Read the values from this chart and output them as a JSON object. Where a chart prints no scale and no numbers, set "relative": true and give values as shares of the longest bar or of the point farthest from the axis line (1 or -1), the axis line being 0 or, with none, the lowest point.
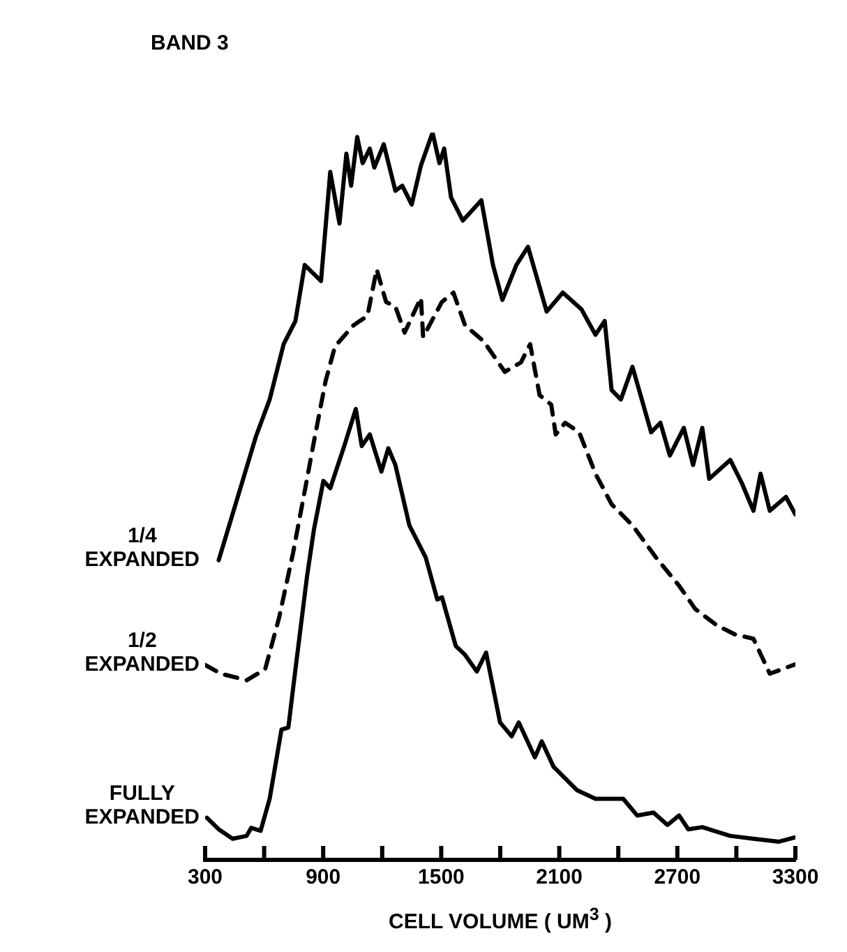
{
  "chart_data": {
    "type": "line",
    "title": "BAND 3",
    "xlabel": "CELL VOLUME ( UM$^{3}$ )",
    "relative": true,
    "legend": false,
    "marker": "none",
    "grid": false,
    "xlim": [
      300,
      3300
    ],
    "xticks": [
      300,
      {
        "value": 600,
        "label": null
      },
      900,
      {
        "value": 1200,
        "label": null
      },
      1500,
      {
        "value": 1800,
        "label": null
      },
      2100,
      {
        "value": 2400,
        "label": null
      },
      2700,
      {
        "value": 3000,
        "label": null
      },
      3300
    ],
    "series": [
      {
        "name": "1/4 EXPANDED",
        "color": "#000000",
        "line_style": "solid",
        "x": [
          369,
          487,
          558,
          628,
          699,
          759,
          806,
          889,
          936,
          983,
          1018,
          1042,
          1073,
          1101,
          1137,
          1160,
          1208,
          1267,
          1302,
          1350,
          1397,
          1456,
          1491,
          1515,
          1550,
          1610,
          1704,
          1763,
          1811,
          1882,
          1941,
          2036,
          2118,
          2213,
          2284,
          2331,
          2366,
          2413,
          2472,
          2567,
          2614,
          2662,
          2733,
          2780,
          2827,
          2862,
          2969,
          3028,
          3087,
          3123,
          3170,
          3252,
          3300
        ],
        "values": [
          0.412,
          0.518,
          0.582,
          0.633,
          0.709,
          0.741,
          0.818,
          0.796,
          0.946,
          0.875,
          0.971,
          0.927,
          0.994,
          0.958,
          0.978,
          0.952,
          0.984,
          0.92,
          0.927,
          0.901,
          0.955,
          1,
          0.958,
          0.978,
          0.911,
          0.879,
          0.907,
          0.818,
          0.77,
          0.818,
          0.843,
          0.754,
          0.78,
          0.757,
          0.722,
          0.741,
          0.646,
          0.633,
          0.678,
          0.588,
          0.601,
          0.556,
          0.594,
          0.543,
          0.594,
          0.524,
          0.55,
          0.518,
          0.48,
          0.531,
          0.48,
          0.499,
          0.475
        ]
      },
      {
        "name": "1/2 EXPANDED",
        "color": "#000000",
        "line_style": "dashed",
        "x": [
          300,
          380,
          511,
          605,
          676,
          747,
          818,
          853,
          912,
          960,
          1054,
          1125,
          1172,
          1220,
          1267,
          1314,
          1397,
          1408,
          1503,
          1562,
          1621,
          1716,
          1823,
          1905,
          1952,
          2000,
          2059,
          2082,
          2130,
          2201,
          2284,
          2366,
          2472,
          2591,
          2709,
          2791,
          2898,
          2993,
          3087,
          3170,
          3300
        ],
        "values": [
          0.268,
          0.256,
          0.247,
          0.262,
          0.333,
          0.422,
          0.524,
          0.575,
          0.658,
          0.706,
          0.735,
          0.748,
          0.812,
          0.767,
          0.761,
          0.725,
          0.773,
          0.719,
          0.767,
          0.78,
          0.735,
          0.713,
          0.671,
          0.684,
          0.709,
          0.639,
          0.626,
          0.585,
          0.601,
          0.588,
          0.531,
          0.489,
          0.46,
          0.416,
          0.377,
          0.345,
          0.323,
          0.31,
          0.304,
          0.256,
          0.269
        ]
      },
      {
        "name": "FULLY EXPANDED",
        "color": "#000000",
        "line_style": "solid",
        "x": [
          309,
          369,
          440,
          511,
          534,
          582,
          628,
          688,
          723,
          759,
          818,
          853,
          901,
          936,
          1007,
          1066,
          1096,
          1137,
          1196,
          1231,
          1267,
          1338,
          1421,
          1480,
          1504,
          1574,
          1621,
          1681,
          1728,
          1799,
          1858,
          1894,
          1976,
          2011,
          2071,
          2189,
          2284,
          2355,
          2425,
          2496,
          2579,
          2650,
          2709,
          2756,
          2827,
          2969,
          3087,
          3217,
          3300
        ],
        "values": [
          0.058,
          0.042,
          0.029,
          0.033,
          0.044,
          0.04,
          0.084,
          0.179,
          0.182,
          0.262,
          0.39,
          0.454,
          0.521,
          0.511,
          0.569,
          0.62,
          0.569,
          0.585,
          0.534,
          0.566,
          0.543,
          0.46,
          0.416,
          0.358,
          0.361,
          0.294,
          0.282,
          0.259,
          0.285,
          0.189,
          0.17,
          0.189,
          0.141,
          0.163,
          0.128,
          0.096,
          0.084,
          0.084,
          0.084,
          0.061,
          0.065,
          0.048,
          0.061,
          0.042,
          0.045,
          0.033,
          0.029,
          0.025,
          0.031
        ]
      }
    ]
  }
}
